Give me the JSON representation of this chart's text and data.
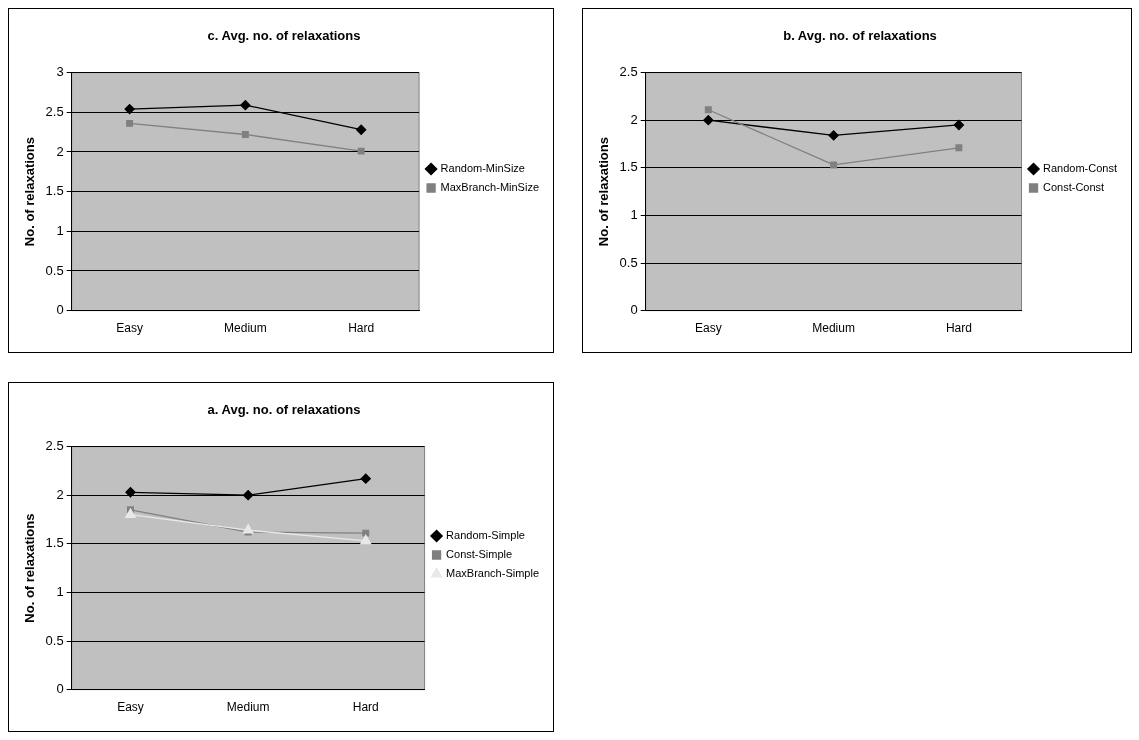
{
  "chart_data": [
    {
      "type": "line",
      "title": "c. Avg. no. of relaxations",
      "ylabel": "No. of relaxations",
      "categories": [
        "Easy",
        "Medium",
        "Hard"
      ],
      "ylim": [
        0,
        3
      ],
      "yticks": [
        0,
        0.5,
        1,
        1.5,
        2,
        2.5,
        3
      ],
      "grid": "y",
      "legend": "right",
      "series": [
        {
          "name": "Random-MinSize",
          "color": "#000000",
          "marker": "diamond",
          "values": [
            2.54,
            2.59,
            2.28
          ]
        },
        {
          "name": "MaxBranch-MinSize",
          "color": "#808080",
          "marker": "square",
          "values": [
            2.36,
            2.22,
            2.01
          ]
        }
      ]
    },
    {
      "type": "line",
      "title": "b. Avg. no. of relaxations",
      "ylabel": "No. of relaxations",
      "categories": [
        "Easy",
        "Medium",
        "Hard"
      ],
      "ylim": [
        0,
        2.5
      ],
      "yticks": [
        0,
        0.5,
        1,
        1.5,
        2,
        2.5
      ],
      "grid": "y",
      "legend": "right",
      "series": [
        {
          "name": "Random-Const",
          "color": "#000000",
          "marker": "diamond",
          "values": [
            2.0,
            1.84,
            1.95
          ]
        },
        {
          "name": "Const-Const",
          "color": "#808080",
          "marker": "square",
          "values": [
            2.11,
            1.53,
            1.71
          ]
        }
      ]
    },
    {
      "type": "line",
      "title": "a. Avg. no. of relaxations",
      "ylabel": "No. of relaxations",
      "categories": [
        "Easy",
        "Medium",
        "Hard"
      ],
      "ylim": [
        0,
        2.5
      ],
      "yticks": [
        0,
        0.5,
        1,
        1.5,
        2,
        2.5
      ],
      "grid": "y",
      "legend": "right",
      "series": [
        {
          "name": "Random-Simple",
          "color": "#000000",
          "marker": "diamond",
          "values": [
            2.03,
            2.0,
            2.17
          ]
        },
        {
          "name": "Const-Simple",
          "color": "#808080",
          "marker": "square",
          "values": [
            1.85,
            1.62,
            1.61
          ]
        },
        {
          "name": "MaxBranch-Simple",
          "color": "#e8e8e8",
          "marker": "triangle",
          "values": [
            1.8,
            1.64,
            1.53
          ]
        }
      ]
    }
  ]
}
